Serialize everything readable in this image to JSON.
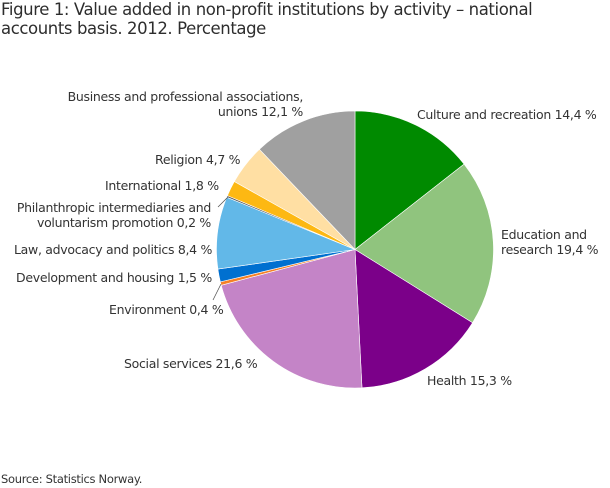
{
  "title": "Figure 1: Value added in non-profit institutions by activity – national accounts basis. 2012. Percentage",
  "source": "Source: Statistics Norway.",
  "chart_data": {
    "type": "pie",
    "title": "Figure 1: Value added in non-profit institutions by activity – national accounts basis. 2012. Percentage",
    "unit": "%",
    "start_angle_deg": 0,
    "direction": "clockwise",
    "categories": [
      "Culture and recreation",
      "Education and research",
      "Health",
      "Social services",
      "Environment",
      "Development and housing",
      "Law, advocacy and politics",
      "Philanthropic intermediaries and voluntarism promotion",
      "International",
      "Religion",
      "Business and professional associations, unions"
    ],
    "values": [
      14.4,
      19.4,
      15.3,
      21.6,
      0.4,
      1.5,
      8.4,
      0.2,
      1.8,
      4.7,
      12.1
    ],
    "colors": [
      "#008a00",
      "#90c47e",
      "#7b0089",
      "#c484c7",
      "#f58025",
      "#0070d0",
      "#62b8e8",
      "#555555",
      "#fdb813",
      "#ffdfa3",
      "#a0a0a0"
    ],
    "labels": [
      {
        "text": "Culture and recreation 14,4 %"
      },
      {
        "line1": "Education and",
        "line2": "research 19,4 %"
      },
      {
        "text": "Health 15,3 %"
      },
      {
        "text": "Social services 21,6 %"
      },
      {
        "text": "Environment 0,4 %"
      },
      {
        "text": "Development and housing 1,5 %"
      },
      {
        "text": "Law, advocacy and politics 8,4 %"
      },
      {
        "line1": "Philanthropic intermediaries and",
        "line2": "voluntarism promotion 0,2 %"
      },
      {
        "text": "International 1,8 %"
      },
      {
        "text": "Religion 4,7 %"
      },
      {
        "line1": "Business and professional associations,",
        "line2": "unions 12,1 %"
      }
    ]
  }
}
